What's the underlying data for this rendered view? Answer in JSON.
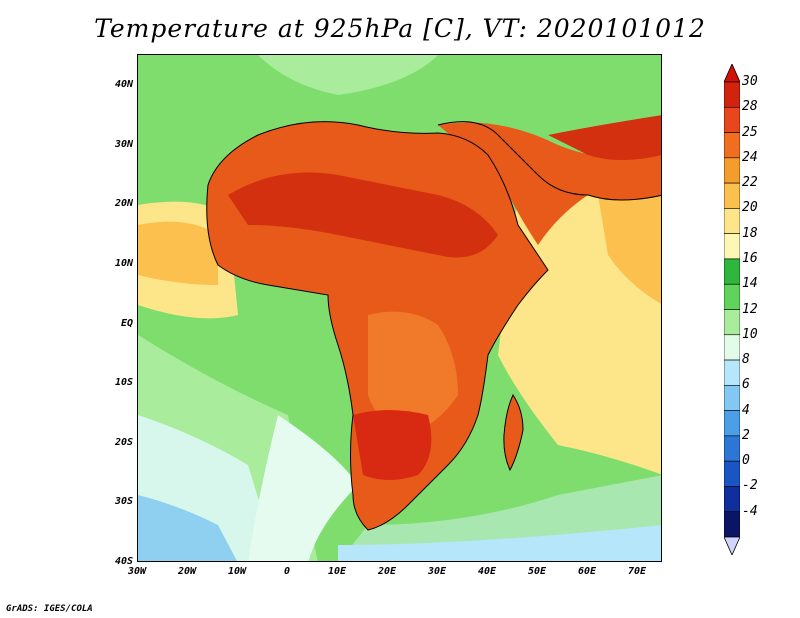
{
  "title": "Temperature at 925hPa [C], VT: 2020101012",
  "credit": "GrADS: IGES/COLA",
  "map": {
    "lat_range": [
      -40,
      45
    ],
    "lon_range": [
      -30,
      75
    ],
    "lat_labels": [
      "40N",
      "30N",
      "20N",
      "10N",
      "EQ",
      "10S",
      "20S",
      "30S",
      "40S"
    ],
    "lon_labels": [
      "30W",
      "20W",
      "10W",
      "0",
      "10E",
      "20E",
      "30E",
      "40E",
      "50E",
      "60E",
      "70E"
    ],
    "ocean_color": "#7ddc6e",
    "land_base_color": "#e66a1c"
  },
  "colorbar": {
    "labels": [
      "30",
      "28",
      "25",
      "24",
      "22",
      "20",
      "18",
      "16",
      "14",
      "12",
      "10",
      "8",
      "6",
      "4",
      "2",
      "0",
      "-2",
      "-4"
    ],
    "colors": [
      "#d2230f",
      "#e8461c",
      "#f06e1e",
      "#f59d2a",
      "#fcc04e",
      "#fde68a",
      "#fdf7b6",
      "#2eb73c",
      "#5fd35a",
      "#a8ec9c",
      "#e3fbe9",
      "#b6e6fa",
      "#82c8f3",
      "#4c9fe6",
      "#2c77d6",
      "#1a55c4",
      "#0f2f9e",
      "#0a1566"
    ],
    "top_cap": "#d21207",
    "bottom_cap": "#d2d4fb"
  }
}
